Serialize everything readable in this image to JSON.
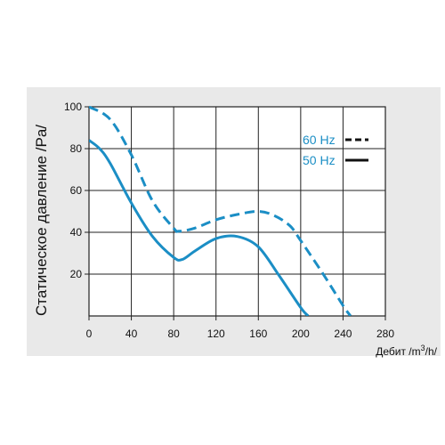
{
  "chart_data": {
    "type": "line",
    "title": "",
    "xlabel_main": "Дебит /m",
    "xlabel_sup": "3",
    "xlabel_tail": "/h/",
    "ylabel": "Статическое давление /Pa/",
    "xlim": [
      0,
      280
    ],
    "ylim": [
      0,
      100
    ],
    "xticks": [
      "0",
      "40",
      "80",
      "120",
      "160",
      "200",
      "240",
      "280"
    ],
    "yticks": [
      "20",
      "40",
      "60",
      "80",
      "100"
    ],
    "grid": true,
    "legend_position": "top-right",
    "colors": {
      "curve": "#1b8ec5",
      "legend_line": "#111111",
      "grid": "#222222",
      "plot_bg": "#ffffff",
      "panel_bg": "#e9e9e9"
    },
    "series": [
      {
        "name": "60 Hz",
        "style": "dashed",
        "x": [
          0,
          20,
          40,
          60,
          80,
          85,
          100,
          120,
          140,
          160,
          175,
          190,
          200,
          220,
          240,
          247
        ],
        "y": [
          100,
          94,
          77,
          55,
          42,
          40.5,
          42,
          46,
          48.5,
          50,
          48,
          43,
          36,
          21,
          5,
          0
        ]
      },
      {
        "name": "50 Hz",
        "style": "solid",
        "x": [
          0,
          10,
          20,
          40,
          60,
          80,
          88,
          100,
          120,
          140,
          160,
          180,
          200,
          207
        ],
        "y": [
          84,
          80,
          73,
          54,
          38,
          28,
          27,
          31,
          37,
          38,
          33,
          19,
          4,
          0
        ]
      }
    ]
  }
}
